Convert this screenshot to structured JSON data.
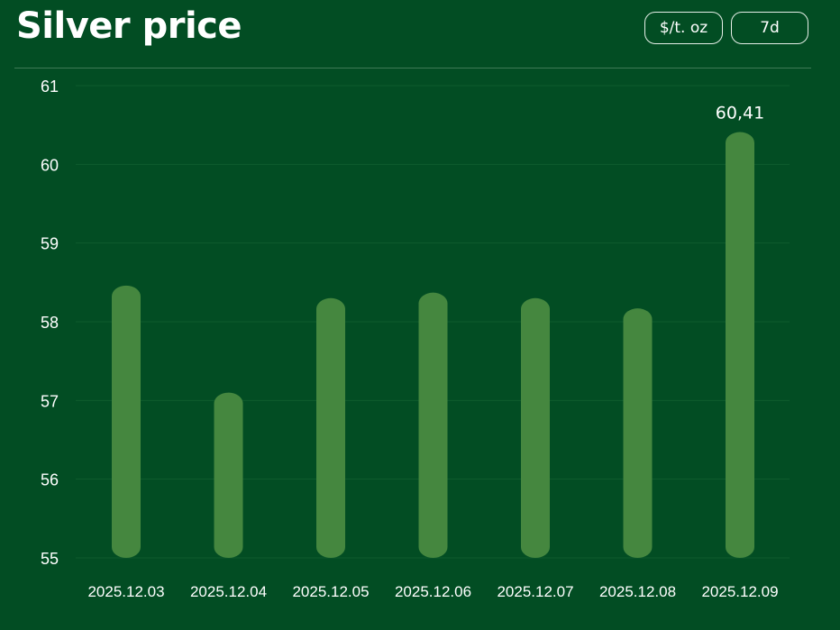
{
  "header": {
    "title": "Silver price",
    "unit_button": "$/t. oz",
    "period_button": "7d"
  },
  "colors": {
    "background": "#024d23",
    "bar": "#45873f",
    "text": "#ffffff"
  },
  "chart_data": {
    "type": "bar",
    "title": "Silver price",
    "categories": [
      "2025.12.03",
      "2025.12.04",
      "2025.12.05",
      "2025.12.06",
      "2025.12.07",
      "2025.12.08",
      "2025.12.09"
    ],
    "series": [
      {
        "values": [
          58.46,
          57.1,
          58.3,
          58.37,
          58.3,
          58.17,
          60.41
        ]
      }
    ],
    "data_labels": [
      {
        "index": 6,
        "text": "60,41"
      }
    ],
    "ylim": [
      55,
      61
    ],
    "yticks": [
      55,
      56,
      57,
      58,
      59,
      60,
      61
    ],
    "grid": true,
    "legend": "none"
  }
}
